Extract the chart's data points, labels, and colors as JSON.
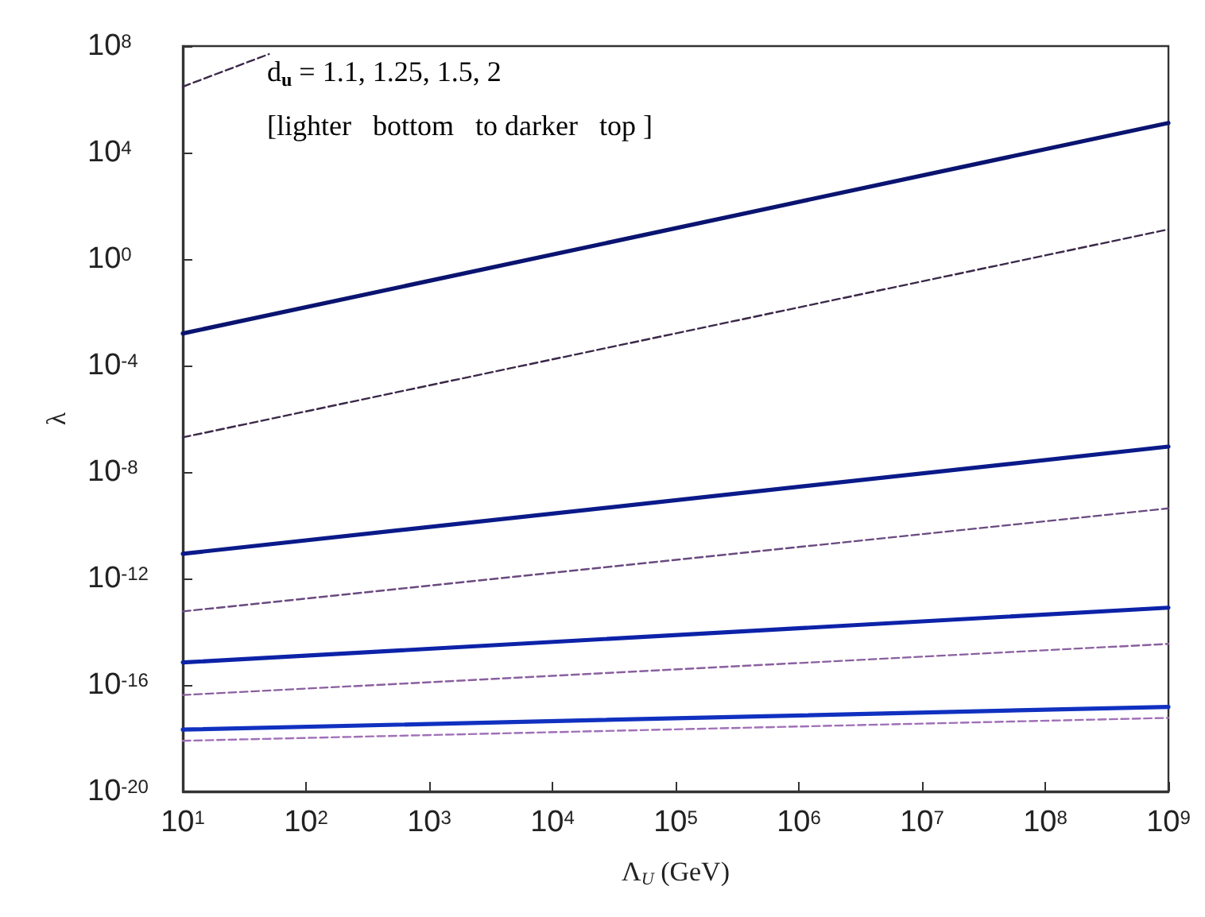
{
  "chart_data": {
    "type": "line",
    "xlabel": "Λ$_{U}$ (GeV)",
    "ylabel": "λ",
    "log": "xy",
    "grid": false,
    "marker": "none",
    "xlim": [
      10,
      1000000000
    ],
    "ylim": [
      1e-20,
      100000000.0
    ],
    "xticks": [
      {
        "value": 10,
        "label": "10$^{1}$"
      },
      {
        "value": 100,
        "label": "10$^{2}$"
      },
      {
        "value": 1000,
        "label": "10$^{3}$"
      },
      {
        "value": 10000,
        "label": "10$^{4}$"
      },
      {
        "value": 100000,
        "label": "10$^{5}$"
      },
      {
        "value": 1000000,
        "label": "10$^{6}$"
      },
      {
        "value": 10000000,
        "label": "10$^{7}$"
      },
      {
        "value": 100000000,
        "label": "10$^{8}$"
      },
      {
        "value": 1000000000,
        "label": "10$^{9}$"
      }
    ],
    "yticks": [
      {
        "value": 1e-20,
        "label": "10$^{-20}$"
      },
      {
        "value": 1e-16,
        "label": "10$^{-16}$"
      },
      {
        "value": 1e-12,
        "label": "10$^{-12}$"
      },
      {
        "value": 1e-08,
        "label": "10$^{-8}$"
      },
      {
        "value": 0.0001,
        "label": "10$^{-4}$"
      },
      {
        "value": 1,
        "label": "10$^{0}$"
      },
      {
        "value": 10000,
        "label": "10$^{4}$"
      },
      {
        "value": 100000000.0,
        "label": "10$^{8}$"
      }
    ],
    "annotations": [
      "d$_{u}$ = 1.1, 1.25, 1.5, 2",
      "[lighter   bottom   to darker   top ]"
    ],
    "series": [
      {
        "color": "#0a1470",
        "line_style": "solid",
        "x": [
          10,
          1000000000
        ],
        "values": [
          0.0016,
          130000.0
        ]
      },
      {
        "color": "#3a2848",
        "line_style": "dashed",
        "x": [
          10,
          1000000000
        ],
        "values": [
          2e-07,
          13
        ]
      },
      {
        "color": "#3a2848",
        "line_style": "dashed",
        "x": [
          10,
          50
        ],
        "values": [
          3000000.0,
          50000000.0
        ]
      },
      {
        "color": "#0a1a8a",
        "line_style": "solid",
        "x": [
          10,
          1000000000
        ],
        "values": [
          8.5e-12,
          9e-08
        ]
      },
      {
        "color": "#6a4a80",
        "line_style": "dashed",
        "x": [
          10,
          1000000000
        ],
        "values": [
          5.8e-14,
          4.3e-10
        ]
      },
      {
        "color": "#0c22a8",
        "line_style": "solid",
        "x": [
          10,
          1000000000
        ],
        "values": [
          7e-16,
          8e-14
        ]
      },
      {
        "color": "#8a60a0",
        "line_style": "dashed",
        "x": [
          10,
          1000000000
        ],
        "values": [
          4.2e-17,
          3.5e-15
        ]
      },
      {
        "color": "#1030c0",
        "line_style": "solid",
        "x": [
          10,
          1000000000
        ],
        "values": [
          2.1e-18,
          1.5e-17
        ]
      },
      {
        "color": "#a070b8",
        "line_style": "dashed",
        "x": [
          10,
          1000000000
        ],
        "values": [
          8e-19,
          5.8e-18
        ]
      }
    ]
  }
}
